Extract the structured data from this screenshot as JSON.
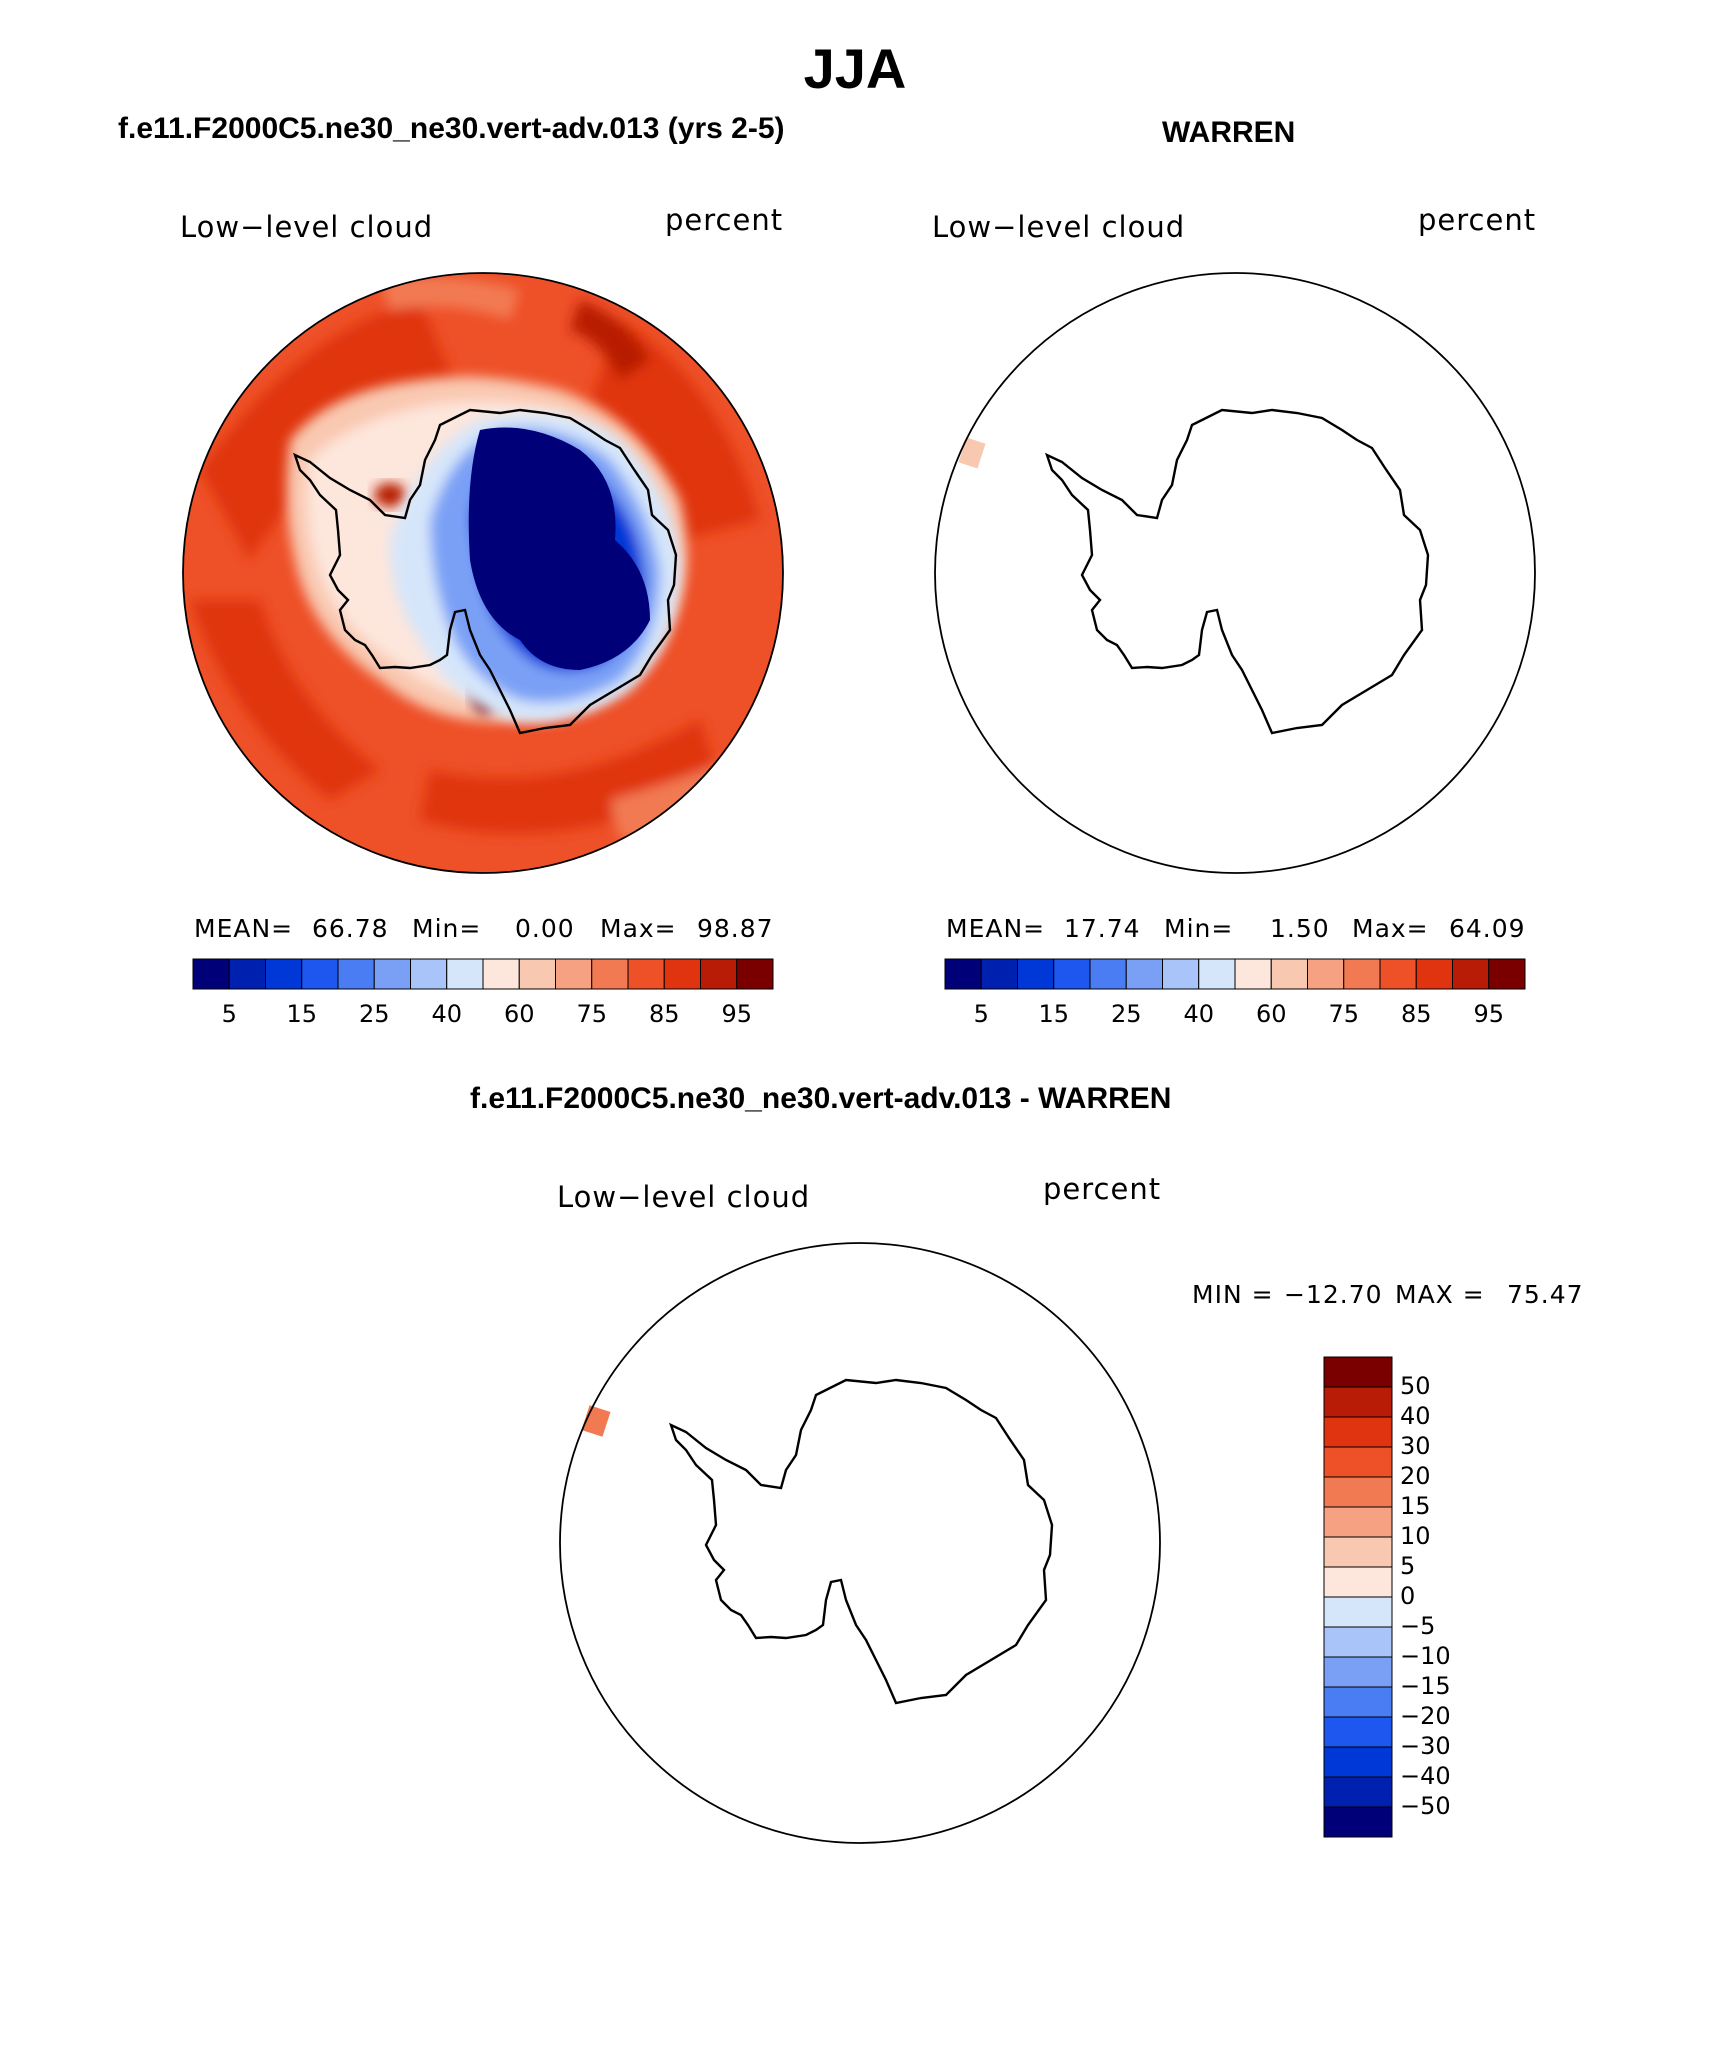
{
  "figure": {
    "title": "JJA"
  },
  "chart_data": [
    {
      "type": "heatmap",
      "title": "f.e11.F2000C5.ne30_ne30.vert-adv.013 (yrs 2-5)",
      "left_label": "Low−level cloud",
      "right_label": "percent",
      "stats": {
        "mean_label": "MEAN=",
        "mean": "66.78",
        "min_label": "Min=",
        "min": "0.00",
        "max_label": "Max=",
        "max": "98.87"
      },
      "colorbar": {
        "colors": [
          "#000078",
          "#0020b0",
          "#0038d8",
          "#1e56f0",
          "#4a7cf4",
          "#7aa0f6",
          "#a9c4f8",
          "#d6e6fa",
          "#fde6dc",
          "#f9c8b0",
          "#f6a282",
          "#f27a52",
          "#ee5028",
          "#e03410",
          "#b81c06",
          "#7a0000"
        ],
        "tick_labels": [
          "5",
          "15",
          "25",
          "40",
          "60",
          "75",
          "85",
          "95"
        ]
      }
    },
    {
      "type": "heatmap",
      "title": "WARREN",
      "left_label": "Low−level cloud",
      "right_label": "percent",
      "stats": {
        "mean_label": "MEAN=",
        "mean": "17.74",
        "min_label": "Min=",
        "min": "1.50",
        "max_label": "Max=",
        "max": "64.09"
      },
      "colorbar": {
        "colors": [
          "#000078",
          "#0020b0",
          "#0038d8",
          "#1e56f0",
          "#4a7cf4",
          "#7aa0f6",
          "#a9c4f8",
          "#d6e6fa",
          "#fde6dc",
          "#f9c8b0",
          "#f6a282",
          "#f27a52",
          "#ee5028",
          "#e03410",
          "#b81c06",
          "#7a0000"
        ],
        "tick_labels": [
          "5",
          "15",
          "25",
          "40",
          "60",
          "75",
          "85",
          "95"
        ]
      }
    },
    {
      "type": "heatmap",
      "title": "f.e11.F2000C5.ne30_ne30.vert-adv.013 - WARREN",
      "left_label": "Low−level cloud",
      "right_label": "percent",
      "stats": {
        "min_label": "MIN =",
        "min": "−12.70",
        "max_label": "MAX =",
        "max": "75.47"
      },
      "colorbar": {
        "colors_top_to_bottom": [
          "#7a0000",
          "#b81c06",
          "#e03410",
          "#ee5028",
          "#f27a52",
          "#f6a282",
          "#f9c8b0",
          "#fde6dc",
          "#d6e6fa",
          "#a9c4f8",
          "#7aa0f6",
          "#4a7cf4",
          "#1e56f0",
          "#0038d8",
          "#0020b0",
          "#000078"
        ],
        "tick_labels": [
          "50",
          "40",
          "30",
          "20",
          "15",
          "10",
          "5",
          "0",
          "−5",
          "−10",
          "−15",
          "−20",
          "−30",
          "−40",
          "−50"
        ]
      }
    }
  ]
}
